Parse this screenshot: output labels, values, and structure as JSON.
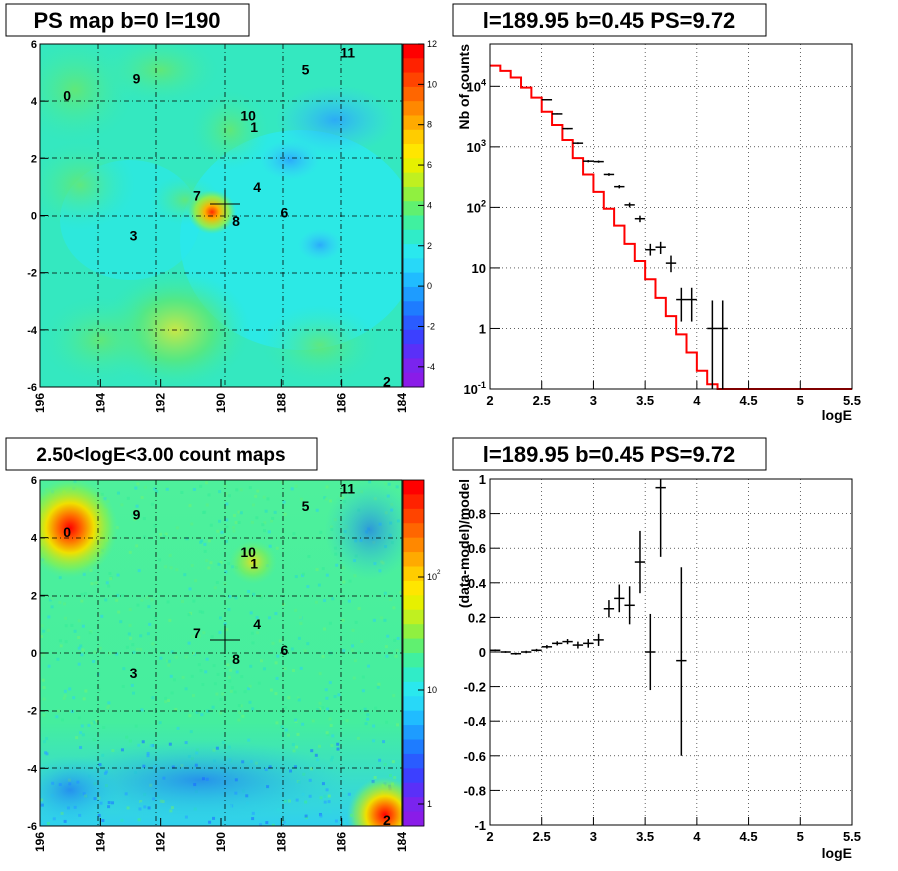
{
  "panels": {
    "map_ps": {
      "title": "PS map b=0 l=190",
      "x_ticks": [
        "196",
        "194",
        "192",
        "190",
        "188",
        "186",
        "184"
      ],
      "y_ticks": [
        "6",
        "4",
        "2",
        "0",
        "-2",
        "-4",
        "-6"
      ],
      "colorbar_ticks": [
        "12",
        "10",
        "8",
        "6",
        "4",
        "2",
        "0",
        "-2",
        "-4"
      ],
      "source_labels": [
        {
          "text": "0",
          "l": 195.1,
          "b": 4.2
        },
        {
          "text": "9",
          "l": 192.8,
          "b": 4.8
        },
        {
          "text": "5",
          "l": 187.2,
          "b": 5.1
        },
        {
          "text": "11",
          "l": 185.8,
          "b": 5.7
        },
        {
          "text": "10",
          "l": 189.1,
          "b": 3.5
        },
        {
          "text": "1",
          "l": 188.9,
          "b": 3.1
        },
        {
          "text": "7",
          "l": 190.8,
          "b": 0.7
        },
        {
          "text": "4",
          "l": 188.8,
          "b": 1.0
        },
        {
          "text": "8",
          "l": 189.5,
          "b": -0.2
        },
        {
          "text": "6",
          "l": 187.9,
          "b": 0.1
        },
        {
          "text": "3",
          "l": 192.9,
          "b": -0.7
        },
        {
          "text": "2",
          "l": 184.5,
          "b": -5.8
        }
      ]
    },
    "spectrum": {
      "title": "l=189.95 b=0.45 PS=9.72",
      "xlabel": "logE",
      "ylabel": "Nb of counts",
      "x_ticks": [
        "2",
        "2.5",
        "3",
        "3.5",
        "4",
        "4.5",
        "5",
        "5.5"
      ],
      "y_ticks": [
        "10^4",
        "10^3",
        "10^2",
        "10",
        "1",
        "10^-1"
      ]
    },
    "map_counts": {
      "title": "2.50<logE<3.00 count maps",
      "x_ticks": [
        "196",
        "194",
        "192",
        "190",
        "188",
        "186",
        "184"
      ],
      "y_ticks": [
        "6",
        "4",
        "2",
        "0",
        "-2",
        "-4",
        "-6"
      ],
      "colorbar_ticks": [
        "10^2",
        "10",
        "1"
      ],
      "source_labels": [
        {
          "text": "0",
          "l": 195.1,
          "b": 4.2
        },
        {
          "text": "9",
          "l": 192.8,
          "b": 4.8
        },
        {
          "text": "5",
          "l": 187.2,
          "b": 5.1
        },
        {
          "text": "11",
          "l": 185.8,
          "b": 5.7
        },
        {
          "text": "10",
          "l": 189.1,
          "b": 3.5
        },
        {
          "text": "1",
          "l": 188.9,
          "b": 3.1
        },
        {
          "text": "7",
          "l": 190.8,
          "b": 0.7
        },
        {
          "text": "4",
          "l": 188.8,
          "b": 1.0
        },
        {
          "text": "8",
          "l": 189.5,
          "b": -0.2
        },
        {
          "text": "6",
          "l": 187.9,
          "b": 0.1
        },
        {
          "text": "3",
          "l": 192.9,
          "b": -0.7
        },
        {
          "text": "2",
          "l": 184.5,
          "b": -5.8
        }
      ]
    },
    "residuals": {
      "title": "l=189.95 b=0.45 PS=9.72",
      "xlabel": "logE",
      "ylabel": "(data-model)/model",
      "x_ticks": [
        "2",
        "2.5",
        "3",
        "3.5",
        "4",
        "4.5",
        "5",
        "5.5"
      ],
      "y_ticks": [
        "1",
        "0.8",
        "0.6",
        "0.4",
        "0.2",
        "0",
        "-0.2",
        "-0.4",
        "-0.6",
        "-0.8",
        "-1"
      ]
    }
  },
  "chart_data": [
    {
      "type": "heatmap",
      "title": "PS map b=0 l=190",
      "xlim": [
        196,
        184
      ],
      "ylim": [
        -6,
        6
      ],
      "z_range": [
        -5,
        12
      ],
      "marker": {
        "l": 189.95,
        "b": 0.45
      },
      "hotspots": [
        {
          "l": 189.9,
          "b": 0.4,
          "value": 9.7
        },
        {
          "l": 191.5,
          "b": -4.5,
          "value": 5
        },
        {
          "l": 192.0,
          "b": -5.2,
          "value": 5
        },
        {
          "l": 194.5,
          "b": 4.0,
          "value": 4
        },
        {
          "l": 189.5,
          "b": 3.3,
          "value": 4
        },
        {
          "l": 193.5,
          "b": 0.8,
          "value": 3.5
        },
        {
          "l": 191.5,
          "b": 0.8,
          "value": 3.5
        }
      ],
      "colors": {
        "low": "#7f22ee",
        "zero": "#23e7f0",
        "high": "#ff0000"
      }
    },
    {
      "type": "line",
      "title": "l=189.95 b=0.45 PS=9.72",
      "xlabel": "logE",
      "ylabel": "Nb of counts",
      "xlim": [
        2,
        5.5
      ],
      "ylim": [
        0.1,
        50000
      ],
      "yscale": "log",
      "grid": true,
      "model_edges": [
        2.0,
        2.1,
        2.2,
        2.3,
        2.4,
        2.5,
        2.6,
        2.7,
        2.8,
        2.9,
        3.0,
        3.1,
        3.2,
        3.3,
        3.4,
        3.5,
        3.6,
        3.7,
        3.8,
        3.9,
        4.0,
        4.1,
        4.2,
        4.3,
        4.4,
        5.5
      ],
      "model_values": [
        22000,
        18000,
        14000,
        9500,
        6500,
        3800,
        2300,
        1300,
        650,
        350,
        180,
        95,
        50,
        25,
        13,
        6.5,
        3.2,
        1.6,
        0.8,
        0.4,
        0.2,
        0.12,
        0.1,
        0.1,
        0.1
      ],
      "data_points": [
        {
          "x": 2.55,
          "y": 6000,
          "ylo": 5900,
          "yhi": 6100
        },
        {
          "x": 2.65,
          "y": 3500,
          "ylo": 3420,
          "yhi": 3580
        },
        {
          "x": 2.75,
          "y": 2000,
          "ylo": 1950,
          "yhi": 2050
        },
        {
          "x": 2.85,
          "y": 1150,
          "ylo": 1110,
          "yhi": 1190
        },
        {
          "x": 2.95,
          "y": 580,
          "ylo": 555,
          "yhi": 605
        },
        {
          "x": 3.05,
          "y": 570,
          "ylo": 546,
          "yhi": 594
        },
        {
          "x": 3.15,
          "y": 350,
          "ylo": 332,
          "yhi": 368
        },
        {
          "x": 3.25,
          "y": 220,
          "ylo": 206,
          "yhi": 234
        },
        {
          "x": 3.35,
          "y": 110,
          "ylo": 100,
          "yhi": 120
        },
        {
          "x": 3.45,
          "y": 65,
          "ylo": 57,
          "yhi": 73
        },
        {
          "x": 3.55,
          "y": 20,
          "ylo": 16,
          "yhi": 25
        },
        {
          "x": 3.65,
          "y": 22,
          "ylo": 17,
          "yhi": 27
        },
        {
          "x": 3.75,
          "y": 12,
          "ylo": 8.5,
          "yhi": 16
        },
        {
          "x": 3.85,
          "y": 3,
          "ylo": 1.3,
          "yhi": 4.7
        },
        {
          "x": 3.95,
          "y": 3,
          "ylo": 1.3,
          "yhi": 4.7
        },
        {
          "x": 4.15,
          "y": 1,
          "ylo": 0.1,
          "yhi": 2.9
        },
        {
          "x": 4.25,
          "y": 1,
          "ylo": 0.1,
          "yhi": 2.9
        }
      ],
      "colors": {
        "model": "#ff0000",
        "data": "#000000"
      }
    },
    {
      "type": "heatmap",
      "title": "2.50<logE<3.00 count maps",
      "xlim": [
        196,
        184
      ],
      "ylim": [
        -6,
        6
      ],
      "zscale": "log",
      "marker": {
        "l": 189.95,
        "b": 0.45
      },
      "hotspots": [
        {
          "l": 195.1,
          "b": 4.2,
          "value": 800
        },
        {
          "l": 184.5,
          "b": -5.8,
          "value": 700
        },
        {
          "l": 189.2,
          "b": 3.0,
          "value": 60
        }
      ],
      "colors": {
        "low": "#7f22ee",
        "mid": "#23e7f0",
        "high": "#ff0000"
      }
    },
    {
      "type": "scatter",
      "title": "l=189.95 b=0.45 PS=9.72",
      "xlabel": "logE",
      "ylabel": "(data-model)/model",
      "xlim": [
        2,
        5.5
      ],
      "ylim": [
        -1,
        1
      ],
      "grid": true,
      "points": [
        {
          "x": 2.05,
          "y": 0.01,
          "ylo": 0.005,
          "yhi": 0.015
        },
        {
          "x": 2.15,
          "y": 0.0,
          "ylo": -0.005,
          "yhi": 0.005
        },
        {
          "x": 2.25,
          "y": -0.01,
          "ylo": -0.016,
          "yhi": -0.004
        },
        {
          "x": 2.35,
          "y": 0.0,
          "ylo": -0.007,
          "yhi": 0.007
        },
        {
          "x": 2.45,
          "y": 0.01,
          "ylo": 0.002,
          "yhi": 0.018
        },
        {
          "x": 2.55,
          "y": 0.03,
          "ylo": 0.02,
          "yhi": 0.04
        },
        {
          "x": 2.65,
          "y": 0.05,
          "ylo": 0.038,
          "yhi": 0.062
        },
        {
          "x": 2.75,
          "y": 0.06,
          "ylo": 0.045,
          "yhi": 0.075
        },
        {
          "x": 2.85,
          "y": 0.04,
          "ylo": 0.02,
          "yhi": 0.06
        },
        {
          "x": 2.95,
          "y": 0.05,
          "ylo": 0.025,
          "yhi": 0.075
        },
        {
          "x": 3.05,
          "y": 0.07,
          "ylo": 0.035,
          "yhi": 0.105
        },
        {
          "x": 3.15,
          "y": 0.25,
          "ylo": 0.2,
          "yhi": 0.3
        },
        {
          "x": 3.25,
          "y": 0.31,
          "ylo": 0.23,
          "yhi": 0.39
        },
        {
          "x": 3.35,
          "y": 0.27,
          "ylo": 0.16,
          "yhi": 0.38
        },
        {
          "x": 3.45,
          "y": 0.52,
          "ylo": 0.34,
          "yhi": 0.7
        },
        {
          "x": 3.55,
          "y": 0.0,
          "ylo": -0.22,
          "yhi": 0.22
        },
        {
          "x": 3.65,
          "y": 0.95,
          "ylo": 0.55,
          "yhi": 1.0
        },
        {
          "x": 3.85,
          "y": -0.05,
          "ylo": -0.6,
          "yhi": 0.49
        }
      ]
    }
  ]
}
